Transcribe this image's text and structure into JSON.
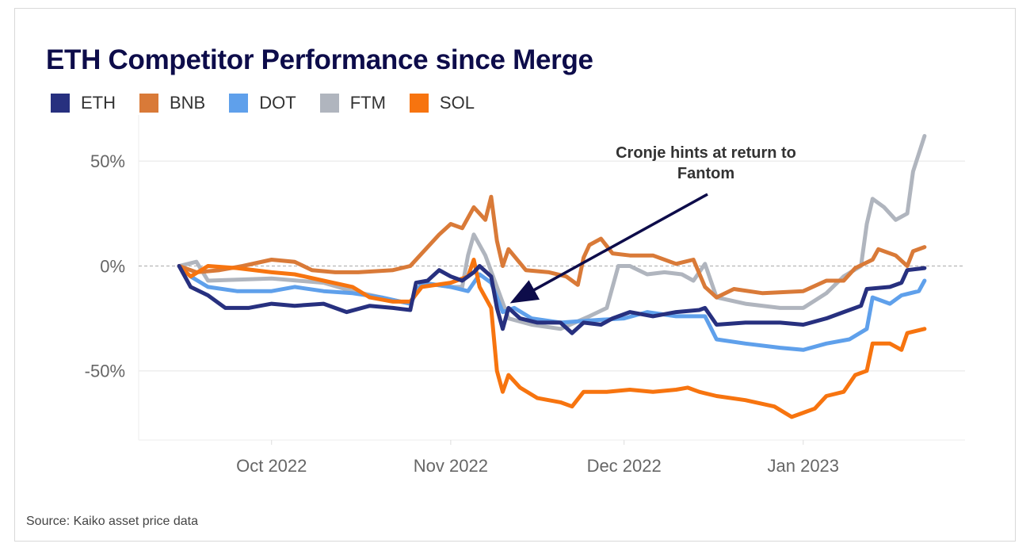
{
  "chart_data": {
    "type": "line",
    "title": "ETH Competitor Performance since Merge",
    "source": "Source: Kaiko asset price data",
    "xlim": [
      "2022-09-08",
      "2023-01-29"
    ],
    "ylim": [
      -83,
      72
    ],
    "x_ticks": [
      {
        "date": "2022-10-01",
        "label": "Oct 2022"
      },
      {
        "date": "2022-11-01",
        "label": "Nov 2022"
      },
      {
        "date": "2022-12-01",
        "label": "Dec 2022"
      },
      {
        "date": "2023-01-01",
        "label": "Jan 2023"
      }
    ],
    "y_ticks": [
      {
        "value": 50,
        "label": "50%"
      },
      {
        "value": 0,
        "label": "0%"
      },
      {
        "value": -50,
        "label": "-50%"
      }
    ],
    "grid": "horizontal",
    "legend_position": "top-left",
    "annotation": {
      "lines": [
        "Cronje hints at return to",
        "Fantom"
      ],
      "target_date": "2022-11-11",
      "target_value": -18
    },
    "series": [
      {
        "name": "ETH",
        "color": "#27307f",
        "points": [
          [
            "2022-09-15",
            0
          ],
          [
            "2022-09-17",
            -10
          ],
          [
            "2022-09-20",
            -14
          ],
          [
            "2022-09-23",
            -20
          ],
          [
            "2022-09-27",
            -20
          ],
          [
            "2022-10-01",
            -18
          ],
          [
            "2022-10-05",
            -19
          ],
          [
            "2022-10-10",
            -18
          ],
          [
            "2022-10-14",
            -22
          ],
          [
            "2022-10-18",
            -19
          ],
          [
            "2022-10-22",
            -20
          ],
          [
            "2022-10-25",
            -21
          ],
          [
            "2022-10-26",
            -8
          ],
          [
            "2022-10-28",
            -7
          ],
          [
            "2022-10-30",
            -2
          ],
          [
            "2022-11-01",
            -5
          ],
          [
            "2022-11-03",
            -7
          ],
          [
            "2022-11-05",
            -3
          ],
          [
            "2022-11-06",
            0
          ],
          [
            "2022-11-08",
            -5
          ],
          [
            "2022-11-09",
            -20
          ],
          [
            "2022-11-10",
            -30
          ],
          [
            "2022-11-11",
            -20
          ],
          [
            "2022-11-13",
            -25
          ],
          [
            "2022-11-16",
            -27
          ],
          [
            "2022-11-20",
            -27
          ],
          [
            "2022-11-22",
            -32
          ],
          [
            "2022-11-24",
            -27
          ],
          [
            "2022-11-27",
            -28
          ],
          [
            "2022-11-29",
            -25
          ],
          [
            "2022-12-02",
            -22
          ],
          [
            "2022-12-06",
            -24
          ],
          [
            "2022-12-10",
            -22
          ],
          [
            "2022-12-14",
            -21
          ],
          [
            "2022-12-15",
            -20
          ],
          [
            "2022-12-17",
            -28
          ],
          [
            "2022-12-22",
            -27
          ],
          [
            "2022-12-28",
            -27
          ],
          [
            "2023-01-01",
            -28
          ],
          [
            "2023-01-05",
            -25
          ],
          [
            "2023-01-08",
            -22
          ],
          [
            "2023-01-11",
            -19
          ],
          [
            "2023-01-12",
            -11
          ],
          [
            "2023-01-16",
            -10
          ],
          [
            "2023-01-18",
            -8
          ],
          [
            "2023-01-19",
            -2
          ],
          [
            "2023-01-22",
            -1
          ]
        ]
      },
      {
        "name": "BNB",
        "color": "#d97a38",
        "points": [
          [
            "2022-09-15",
            0
          ],
          [
            "2022-09-18",
            -3
          ],
          [
            "2022-09-22",
            -2
          ],
          [
            "2022-09-26",
            0
          ],
          [
            "2022-10-01",
            3
          ],
          [
            "2022-10-05",
            2
          ],
          [
            "2022-10-08",
            -2
          ],
          [
            "2022-10-12",
            -3
          ],
          [
            "2022-10-16",
            -3
          ],
          [
            "2022-10-22",
            -2
          ],
          [
            "2022-10-25",
            0
          ],
          [
            "2022-10-27",
            6
          ],
          [
            "2022-10-30",
            15
          ],
          [
            "2022-11-01",
            20
          ],
          [
            "2022-11-03",
            18
          ],
          [
            "2022-11-05",
            28
          ],
          [
            "2022-11-06",
            25
          ],
          [
            "2022-11-07",
            22
          ],
          [
            "2022-11-08",
            33
          ],
          [
            "2022-11-09",
            12
          ],
          [
            "2022-11-10",
            0
          ],
          [
            "2022-11-11",
            8
          ],
          [
            "2022-11-14",
            -2
          ],
          [
            "2022-11-18",
            -3
          ],
          [
            "2022-11-21",
            -5
          ],
          [
            "2022-11-23",
            -9
          ],
          [
            "2022-11-24",
            4
          ],
          [
            "2022-11-25",
            10
          ],
          [
            "2022-11-27",
            13
          ],
          [
            "2022-11-29",
            6
          ],
          [
            "2022-12-02",
            5
          ],
          [
            "2022-12-06",
            5
          ],
          [
            "2022-12-10",
            1
          ],
          [
            "2022-12-13",
            3
          ],
          [
            "2022-12-15",
            -10
          ],
          [
            "2022-12-17",
            -15
          ],
          [
            "2022-12-20",
            -11
          ],
          [
            "2022-12-25",
            -13
          ],
          [
            "2023-01-01",
            -12
          ],
          [
            "2023-01-05",
            -7
          ],
          [
            "2023-01-08",
            -7
          ],
          [
            "2023-01-10",
            -1
          ],
          [
            "2023-01-13",
            3
          ],
          [
            "2023-01-14",
            8
          ],
          [
            "2023-01-17",
            5
          ],
          [
            "2023-01-19",
            0
          ],
          [
            "2023-01-20",
            7
          ],
          [
            "2023-01-22",
            9
          ]
        ]
      },
      {
        "name": "DOT",
        "color": "#5fa0eb",
        "points": [
          [
            "2022-09-15",
            0
          ],
          [
            "2022-09-17",
            -5
          ],
          [
            "2022-09-20",
            -10
          ],
          [
            "2022-09-25",
            -12
          ],
          [
            "2022-10-01",
            -12
          ],
          [
            "2022-10-05",
            -10
          ],
          [
            "2022-10-10",
            -12
          ],
          [
            "2022-10-15",
            -13
          ],
          [
            "2022-10-20",
            -15
          ],
          [
            "2022-10-25",
            -18
          ],
          [
            "2022-10-27",
            -8
          ],
          [
            "2022-11-01",
            -10
          ],
          [
            "2022-11-04",
            -12
          ],
          [
            "2022-11-06",
            -4
          ],
          [
            "2022-11-08",
            -8
          ],
          [
            "2022-11-10",
            -22
          ],
          [
            "2022-11-12",
            -20
          ],
          [
            "2022-11-15",
            -25
          ],
          [
            "2022-11-20",
            -27
          ],
          [
            "2022-11-25",
            -26
          ],
          [
            "2022-12-01",
            -25
          ],
          [
            "2022-12-05",
            -22
          ],
          [
            "2022-12-10",
            -24
          ],
          [
            "2022-12-15",
            -24
          ],
          [
            "2022-12-17",
            -35
          ],
          [
            "2022-12-22",
            -37
          ],
          [
            "2022-12-28",
            -39
          ],
          [
            "2023-01-01",
            -40
          ],
          [
            "2023-01-05",
            -37
          ],
          [
            "2023-01-09",
            -35
          ],
          [
            "2023-01-12",
            -30
          ],
          [
            "2023-01-13",
            -15
          ],
          [
            "2023-01-16",
            -18
          ],
          [
            "2023-01-18",
            -14
          ],
          [
            "2023-01-21",
            -12
          ],
          [
            "2023-01-22",
            -7
          ]
        ]
      },
      {
        "name": "FTM",
        "color": "#b0b5be",
        "points": [
          [
            "2022-09-15",
            0
          ],
          [
            "2022-09-18",
            2
          ],
          [
            "2022-09-20",
            -7
          ],
          [
            "2022-10-01",
            -6
          ],
          [
            "2022-10-10",
            -8
          ],
          [
            "2022-10-15",
            -12
          ],
          [
            "2022-10-20",
            -15
          ],
          [
            "2022-10-25",
            -18
          ],
          [
            "2022-10-27",
            -8
          ],
          [
            "2022-11-01",
            -10
          ],
          [
            "2022-11-03",
            -10
          ],
          [
            "2022-11-04",
            5
          ],
          [
            "2022-11-05",
            15
          ],
          [
            "2022-11-07",
            5
          ],
          [
            "2022-11-09",
            -10
          ],
          [
            "2022-11-11",
            -25
          ],
          [
            "2022-11-15",
            -28
          ],
          [
            "2022-11-20",
            -30
          ],
          [
            "2022-11-25",
            -24
          ],
          [
            "2022-11-28",
            -20
          ],
          [
            "2022-11-30",
            0
          ],
          [
            "2022-12-02",
            0
          ],
          [
            "2022-12-05",
            -4
          ],
          [
            "2022-12-08",
            -3
          ],
          [
            "2022-12-11",
            -4
          ],
          [
            "2022-12-13",
            -7
          ],
          [
            "2022-12-15",
            1
          ],
          [
            "2022-12-17",
            -15
          ],
          [
            "2022-12-22",
            -18
          ],
          [
            "2022-12-28",
            -20
          ],
          [
            "2023-01-01",
            -20
          ],
          [
            "2023-01-05",
            -13
          ],
          [
            "2023-01-08",
            -5
          ],
          [
            "2023-01-11",
            0
          ],
          [
            "2023-01-12",
            20
          ],
          [
            "2023-01-13",
            32
          ],
          [
            "2023-01-15",
            28
          ],
          [
            "2023-01-17",
            22
          ],
          [
            "2023-01-19",
            25
          ],
          [
            "2023-01-20",
            45
          ],
          [
            "2023-01-22",
            62
          ]
        ]
      },
      {
        "name": "SOL",
        "color": "#f7740f",
        "points": [
          [
            "2022-09-15",
            0
          ],
          [
            "2022-09-17",
            -5
          ],
          [
            "2022-09-20",
            0
          ],
          [
            "2022-09-25",
            -1
          ],
          [
            "2022-10-01",
            -3
          ],
          [
            "2022-10-05",
            -4
          ],
          [
            "2022-10-10",
            -7
          ],
          [
            "2022-10-15",
            -10
          ],
          [
            "2022-10-18",
            -15
          ],
          [
            "2022-10-22",
            -17
          ],
          [
            "2022-10-25",
            -17
          ],
          [
            "2022-10-27",
            -10
          ],
          [
            "2022-11-01",
            -8
          ],
          [
            "2022-11-04",
            -5
          ],
          [
            "2022-11-05",
            3
          ],
          [
            "2022-11-06",
            -10
          ],
          [
            "2022-11-08",
            -20
          ],
          [
            "2022-11-09",
            -50
          ],
          [
            "2022-11-10",
            -60
          ],
          [
            "2022-11-11",
            -52
          ],
          [
            "2022-11-13",
            -58
          ],
          [
            "2022-11-16",
            -63
          ],
          [
            "2022-11-20",
            -65
          ],
          [
            "2022-11-22",
            -67
          ],
          [
            "2022-11-24",
            -60
          ],
          [
            "2022-11-28",
            -60
          ],
          [
            "2022-12-02",
            -59
          ],
          [
            "2022-12-06",
            -60
          ],
          [
            "2022-12-10",
            -59
          ],
          [
            "2022-12-12",
            -58
          ],
          [
            "2022-12-14",
            -60
          ],
          [
            "2022-12-17",
            -62
          ],
          [
            "2022-12-22",
            -64
          ],
          [
            "2022-12-27",
            -67
          ],
          [
            "2022-12-30",
            -72
          ],
          [
            "2023-01-01",
            -70
          ],
          [
            "2023-01-03",
            -68
          ],
          [
            "2023-01-05",
            -62
          ],
          [
            "2023-01-08",
            -60
          ],
          [
            "2023-01-10",
            -52
          ],
          [
            "2023-01-12",
            -50
          ],
          [
            "2023-01-13",
            -37
          ],
          [
            "2023-01-16",
            -37
          ],
          [
            "2023-01-18",
            -40
          ],
          [
            "2023-01-19",
            -32
          ],
          [
            "2023-01-22",
            -30
          ]
        ]
      }
    ]
  }
}
